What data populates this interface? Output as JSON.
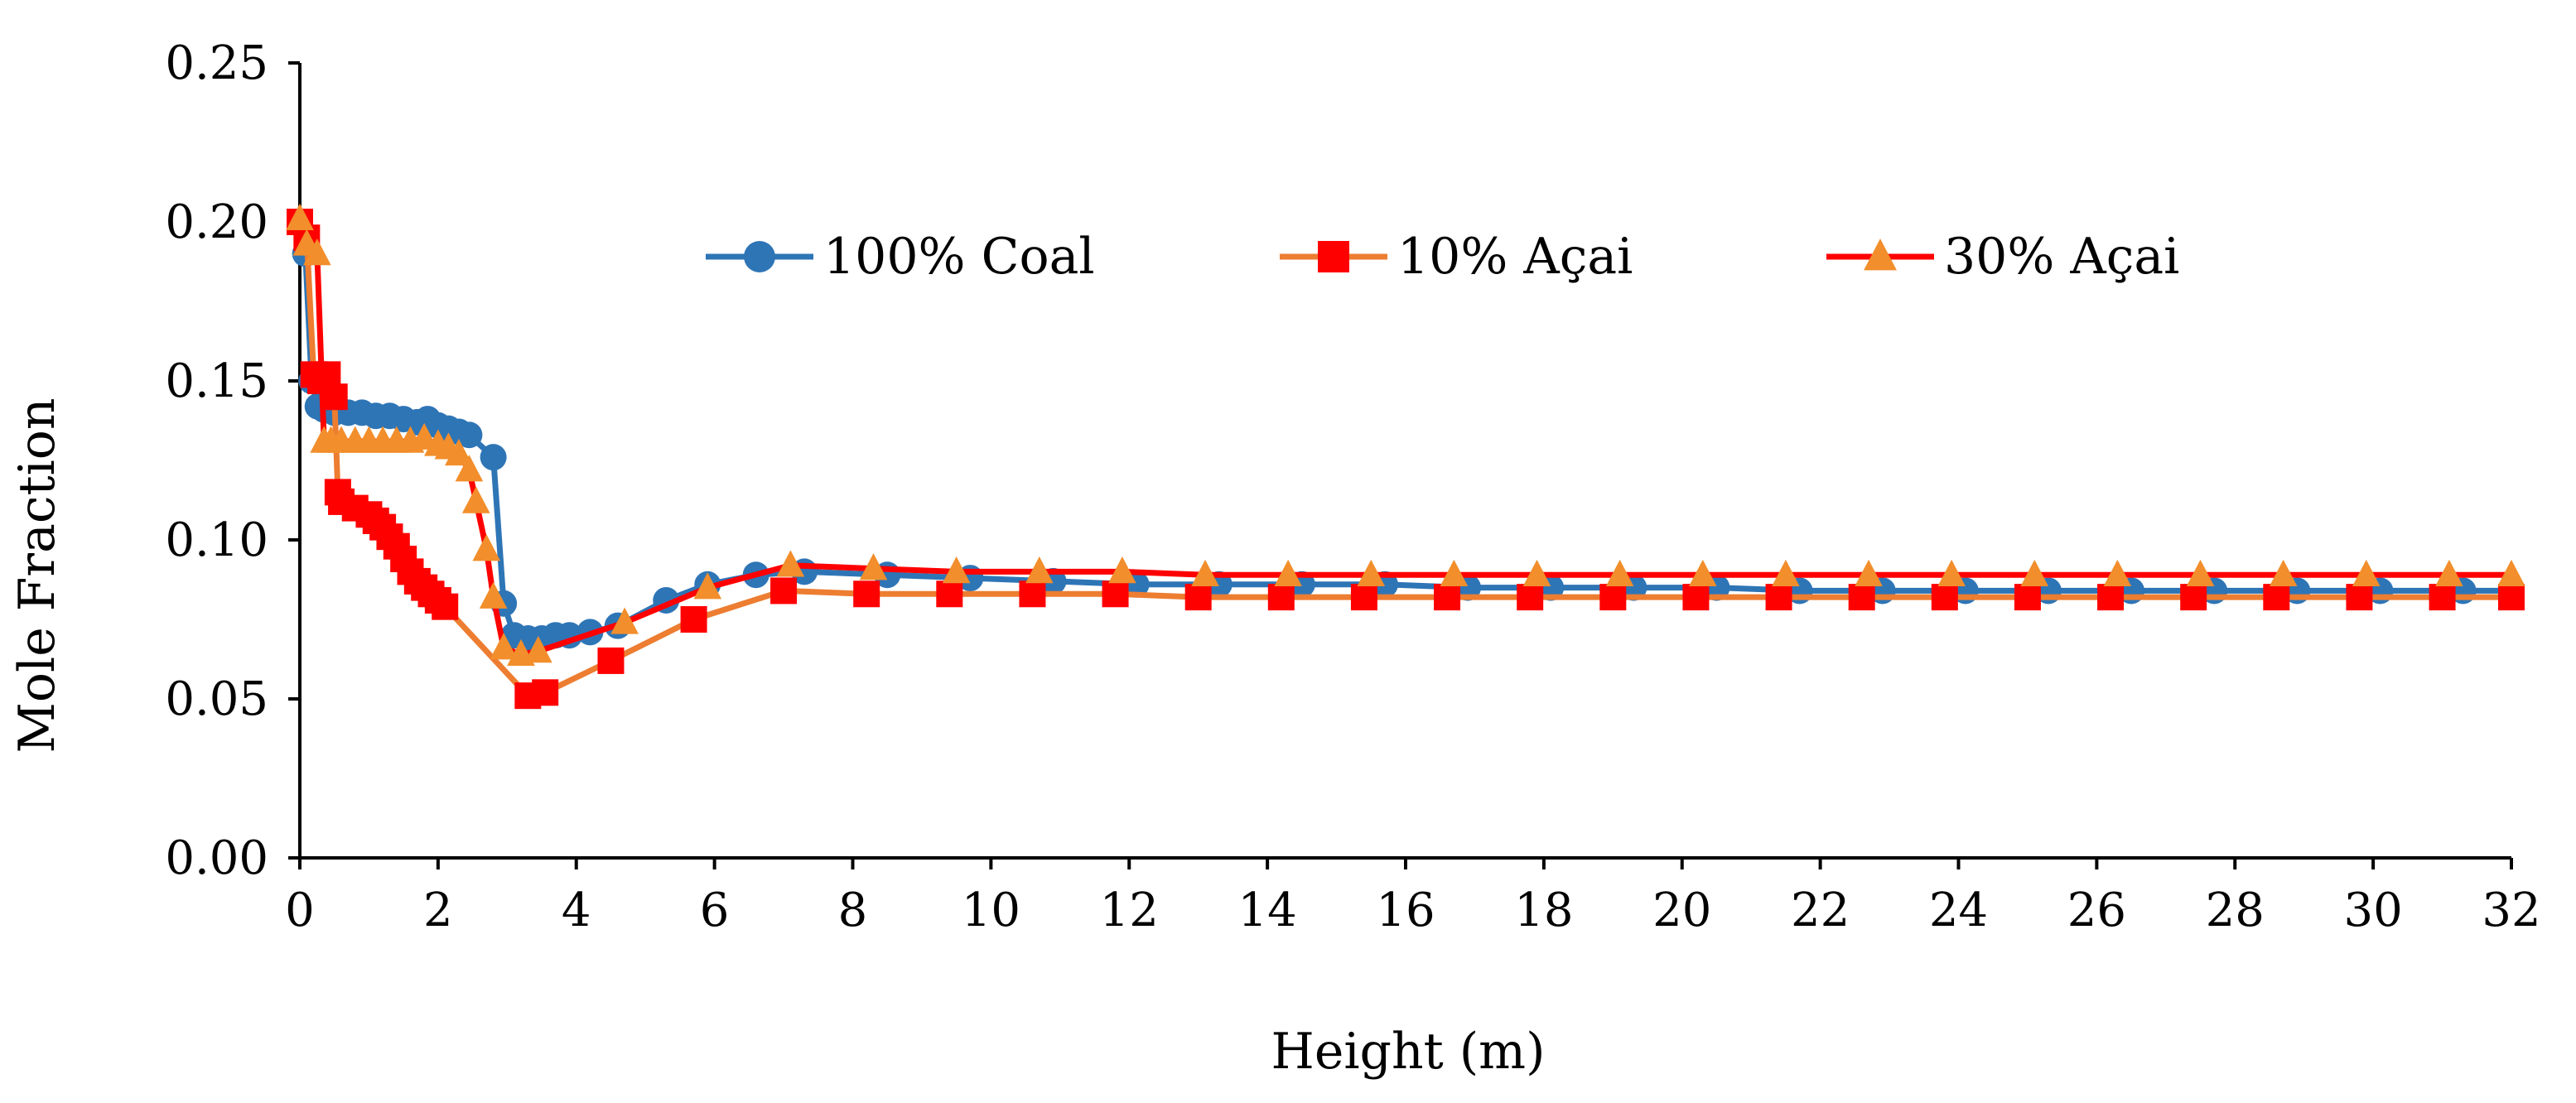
{
  "chart_data": {
    "type": "line",
    "title": "",
    "xlabel": "Height (m)",
    "ylabel": "Mole Fraction",
    "xlim": [
      0,
      32
    ],
    "ylim": [
      0,
      0.25
    ],
    "xticks": [
      "0",
      "2",
      "4",
      "6",
      "8",
      "10",
      "12",
      "14",
      "16",
      "18",
      "20",
      "22",
      "24",
      "26",
      "28",
      "30",
      "32"
    ],
    "yticks": [
      "0.00",
      "0.05",
      "0.10",
      "0.15",
      "0.20",
      "0.25"
    ],
    "grid": false,
    "legend_position": "top-center",
    "series": [
      {
        "name": "100% Coal",
        "color": "#2e75b6",
        "marker": "circle",
        "x": [
          0.0,
          0.08,
          0.17,
          0.26,
          0.35,
          0.5,
          0.7,
          0.9,
          1.1,
          1.3,
          1.5,
          1.7,
          1.85,
          2.0,
          2.15,
          2.3,
          2.45,
          2.8,
          2.95,
          3.1,
          3.3,
          3.5,
          3.7,
          3.9,
          4.2,
          4.6,
          5.3,
          5.9,
          6.6,
          7.3,
          8.5,
          9.7,
          10.9,
          12.1,
          13.3,
          14.5,
          15.7,
          16.9,
          18.1,
          19.3,
          20.5,
          21.7,
          22.9,
          24.1,
          25.3,
          26.5,
          27.7,
          28.9,
          30.1,
          31.3,
          32.0
        ],
        "y": [
          0.2,
          0.19,
          0.15,
          0.142,
          0.141,
          0.14,
          0.14,
          0.14,
          0.139,
          0.139,
          0.138,
          0.137,
          0.138,
          0.136,
          0.135,
          0.134,
          0.133,
          0.126,
          0.08,
          0.07,
          0.069,
          0.069,
          0.07,
          0.07,
          0.071,
          0.073,
          0.081,
          0.086,
          0.089,
          0.09,
          0.089,
          0.088,
          0.087,
          0.086,
          0.086,
          0.086,
          0.086,
          0.085,
          0.085,
          0.085,
          0.085,
          0.084,
          0.084,
          0.084,
          0.084,
          0.084,
          0.084,
          0.084,
          0.084,
          0.084,
          0.084
        ]
      },
      {
        "name": "10% Açai",
        "color": "#ff0000",
        "line_color": "#ed7d31",
        "marker": "square",
        "x": [
          0.0,
          0.1,
          0.2,
          0.3,
          0.4,
          0.5,
          0.55,
          0.6,
          0.8,
          1.0,
          1.1,
          1.2,
          1.3,
          1.4,
          1.5,
          1.6,
          1.7,
          1.8,
          1.9,
          2.0,
          2.1,
          3.3,
          3.55,
          4.5,
          5.7,
          7.0,
          8.2,
          9.4,
          10.6,
          11.8,
          13.0,
          14.2,
          15.4,
          16.6,
          17.8,
          19.0,
          20.2,
          21.4,
          22.6,
          23.8,
          25.0,
          26.2,
          27.4,
          28.6,
          29.8,
          31.0,
          32.0
        ],
        "y": [
          0.2,
          0.195,
          0.152,
          0.15,
          0.152,
          0.145,
          0.115,
          0.112,
          0.11,
          0.108,
          0.106,
          0.104,
          0.101,
          0.098,
          0.094,
          0.09,
          0.087,
          0.085,
          0.083,
          0.081,
          0.079,
          0.051,
          0.052,
          0.062,
          0.075,
          0.084,
          0.083,
          0.083,
          0.083,
          0.083,
          0.082,
          0.082,
          0.082,
          0.082,
          0.082,
          0.082,
          0.082,
          0.082,
          0.082,
          0.082,
          0.082,
          0.082,
          0.082,
          0.082,
          0.082,
          0.082,
          0.082
        ]
      },
      {
        "name": "30% Açai",
        "color": "#f28e2b",
        "line_color": "#ff0000",
        "marker": "triangle",
        "x": [
          0.0,
          0.1,
          0.25,
          0.35,
          0.45,
          0.6,
          0.8,
          1.0,
          1.2,
          1.4,
          1.6,
          1.8,
          2.0,
          2.15,
          2.3,
          2.45,
          2.55,
          2.7,
          2.8,
          2.95,
          3.2,
          3.45,
          4.7,
          5.9,
          7.1,
          8.3,
          9.5,
          10.7,
          11.9,
          13.1,
          14.3,
          15.5,
          16.7,
          17.9,
          19.1,
          20.3,
          21.5,
          22.7,
          23.9,
          25.1,
          26.3,
          27.5,
          28.7,
          29.9,
          31.1,
          32.0
        ],
        "y": [
          0.201,
          0.193,
          0.19,
          0.131,
          0.131,
          0.131,
          0.131,
          0.131,
          0.131,
          0.131,
          0.131,
          0.132,
          0.13,
          0.129,
          0.127,
          0.122,
          0.112,
          0.097,
          0.082,
          0.066,
          0.064,
          0.065,
          0.074,
          0.085,
          0.092,
          0.091,
          0.09,
          0.09,
          0.09,
          0.089,
          0.089,
          0.089,
          0.089,
          0.089,
          0.089,
          0.089,
          0.089,
          0.089,
          0.089,
          0.089,
          0.089,
          0.089,
          0.089,
          0.089,
          0.089,
          0.089
        ]
      }
    ]
  }
}
